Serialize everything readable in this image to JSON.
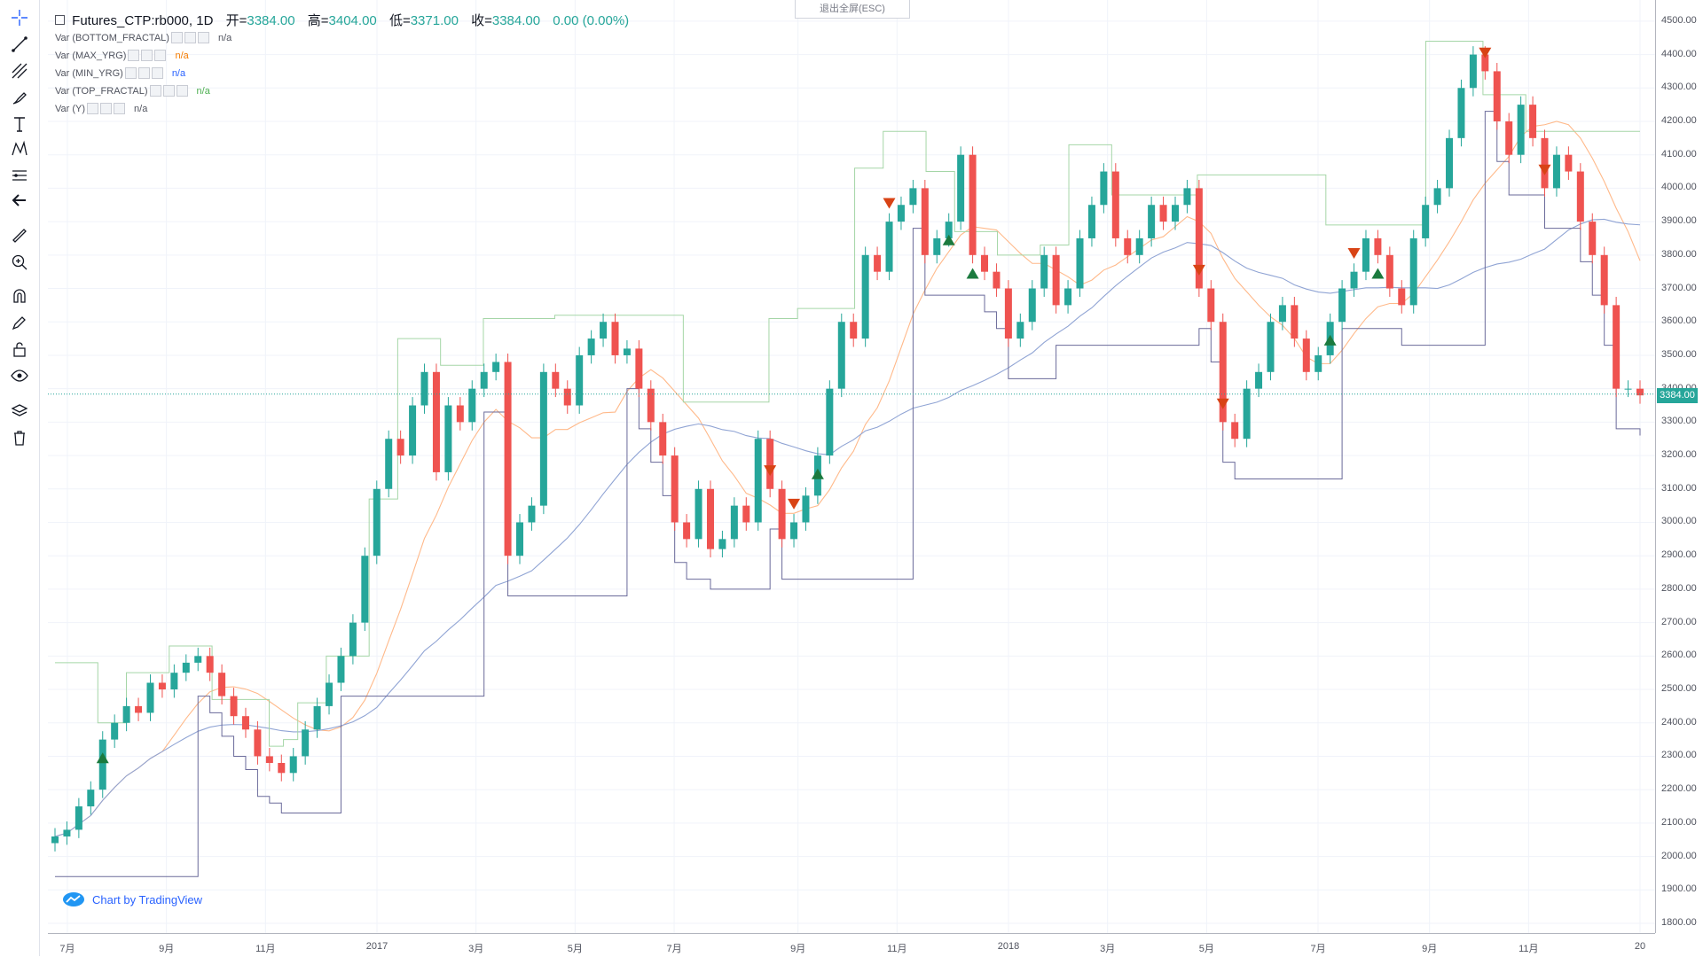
{
  "legend": {
    "symbol": "Futures_CTP:rb000, 1D",
    "open_label": "开=",
    "open": "3384.00",
    "high_label": "高=",
    "high": "3404.00",
    "low_label": "低=",
    "low": "3371.00",
    "close_label": "收=",
    "close": "3384.00",
    "change": "0.00 (0.00%)"
  },
  "indicators": [
    {
      "name": "Var (BOTTOM_FRACTAL)",
      "value": "n/a",
      "color": "#131722"
    },
    {
      "name": "Var (MAX_YRG)",
      "value": "n/a",
      "color": "#f57c00"
    },
    {
      "name": "Var (MIN_YRG)",
      "value": "n/a",
      "color": "#2962ff"
    },
    {
      "name": "Var (TOP_FRACTAL)",
      "value": "n/a",
      "color": "#4caf50"
    },
    {
      "name": "Var (Y)",
      "value": "n/a",
      "color": "#131722"
    }
  ],
  "exit_fullscreen": "退出全屏(ESC)",
  "brand": "Chart by TradingView",
  "current_price": "3384.00",
  "colors": {
    "up": "#26a69a",
    "down": "#ef5350",
    "top": "#a5d6a7",
    "max": "#ffb98a",
    "min": "#90a4d4",
    "step": "#6a6a9a",
    "cur": "#26a69a"
  },
  "toolbar_icons": [
    "crosshair-icon",
    "trendline-icon",
    "pitchfork-icon",
    "brush-icon",
    "text-icon",
    "pattern-icon",
    "ruler-lines-icon",
    "back-arrow-icon",
    "measure-icon",
    "zoom-in-icon",
    "magnet-icon",
    "lock-pencil-icon",
    "lock-icon",
    "eye-icon",
    "layers-icon",
    "trash-icon"
  ],
  "chart_data": {
    "type": "candlestick",
    "title": "Futures_CTP:rb000, 1D",
    "ylim": [
      1800,
      4550
    ],
    "y_ticks": [
      "4500.00",
      "4400.00",
      "4300.00",
      "4200.00",
      "4100.00",
      "4000.00",
      "3900.00",
      "3800.00",
      "3700.00",
      "3600.00",
      "3500.00",
      "3400.00",
      "3300.00",
      "3200.00",
      "3100.00",
      "3000.00",
      "2900.00",
      "2800.00",
      "2700.00",
      "2600.00",
      "2500.00",
      "2400.00",
      "2300.00",
      "2200.00",
      "2100.00",
      "2000.00",
      "1900.00",
      "1800.00"
    ],
    "x_ticks": [
      {
        "label": "7月",
        "t": 1
      },
      {
        "label": "9月",
        "t": 9
      },
      {
        "label": "11月",
        "t": 17
      },
      {
        "label": "2017",
        "t": 26
      },
      {
        "label": "3月",
        "t": 34
      },
      {
        "label": "5月",
        "t": 42
      },
      {
        "label": "7月",
        "t": 50
      },
      {
        "label": "9月",
        "t": 60
      },
      {
        "label": "11月",
        "t": 68
      },
      {
        "label": "2018",
        "t": 77
      },
      {
        "label": "3月",
        "t": 85
      },
      {
        "label": "5月",
        "t": 93
      },
      {
        "label": "7月",
        "t": 102
      },
      {
        "label": "9月",
        "t": 111
      },
      {
        "label": "11月",
        "t": 119
      },
      {
        "label": "20",
        "t": 128
      }
    ],
    "close_series": [
      2060,
      2080,
      2150,
      2200,
      2350,
      2400,
      2450,
      2430,
      2520,
      2500,
      2550,
      2580,
      2600,
      2550,
      2480,
      2420,
      2380,
      2300,
      2280,
      2250,
      2300,
      2380,
      2450,
      2520,
      2600,
      2700,
      2900,
      3100,
      3250,
      3200,
      3350,
      3450,
      3150,
      3350,
      3300,
      3400,
      3450,
      3480,
      2900,
      3000,
      3050,
      3450,
      3400,
      3350,
      3500,
      3550,
      3600,
      3500,
      3520,
      3400,
      3300,
      3200,
      3000,
      2950,
      3100,
      2920,
      2950,
      3050,
      3000,
      3250,
      3100,
      2950,
      3000,
      3080,
      3200,
      3400,
      3600,
      3550,
      3800,
      3750,
      3900,
      3950,
      4000,
      3800,
      3850,
      3900,
      4100,
      3800,
      3750,
      3700,
      3550,
      3600,
      3700,
      3800,
      3650,
      3700,
      3850,
      3950,
      4050,
      3850,
      3800,
      3850,
      3950,
      3900,
      3950,
      4000,
      3700,
      3600,
      3300,
      3250,
      3400,
      3450,
      3600,
      3650,
      3550,
      3450,
      3500,
      3600,
      3700,
      3750,
      3850,
      3800,
      3700,
      3650,
      3850,
      3950,
      4000,
      4150,
      4300,
      4400,
      4350,
      4200,
      4100,
      4250,
      4150,
      4000,
      4100,
      4050,
      3900,
      3800,
      3650,
      3400,
      3400,
      3380
    ],
    "top_fractal": [
      2580,
      2580,
      2580,
      2400,
      2400,
      2550,
      2550,
      2550,
      2630,
      2630,
      2630,
      2470,
      2470,
      2470,
      2470,
      2330,
      2350,
      2460,
      2460,
      2600,
      2600,
      2600,
      3070,
      3070,
      3550,
      3550,
      3550,
      3470,
      3470,
      3470,
      3610,
      3610,
      3610,
      3610,
      3610,
      3620,
      3620,
      3620,
      3620,
      3620,
      3620,
      3620,
      3620,
      3620,
      3360,
      3360,
      3360,
      3360,
      3360,
      3360,
      3610,
      3610,
      3640,
      3640,
      3640,
      3640,
      4060,
      4060,
      4170,
      4170,
      4170,
      4050,
      4050,
      3870,
      3870,
      3870,
      3800,
      3800,
      3800,
      3830,
      3830,
      4130,
      4130,
      4130,
      3980,
      3980,
      3980,
      3980,
      3980,
      3980,
      4040,
      4040,
      4040,
      4040,
      4040,
      4040,
      4040,
      4040,
      4040,
      3890,
      3890,
      3890,
      3890,
      3890,
      3890,
      3890,
      4440,
      4440,
      4440,
      4440,
      4280,
      4280,
      4280,
      4170,
      4170,
      4170,
      4170,
      4170,
      4170,
      4170,
      4170,
      4170
    ]
  }
}
